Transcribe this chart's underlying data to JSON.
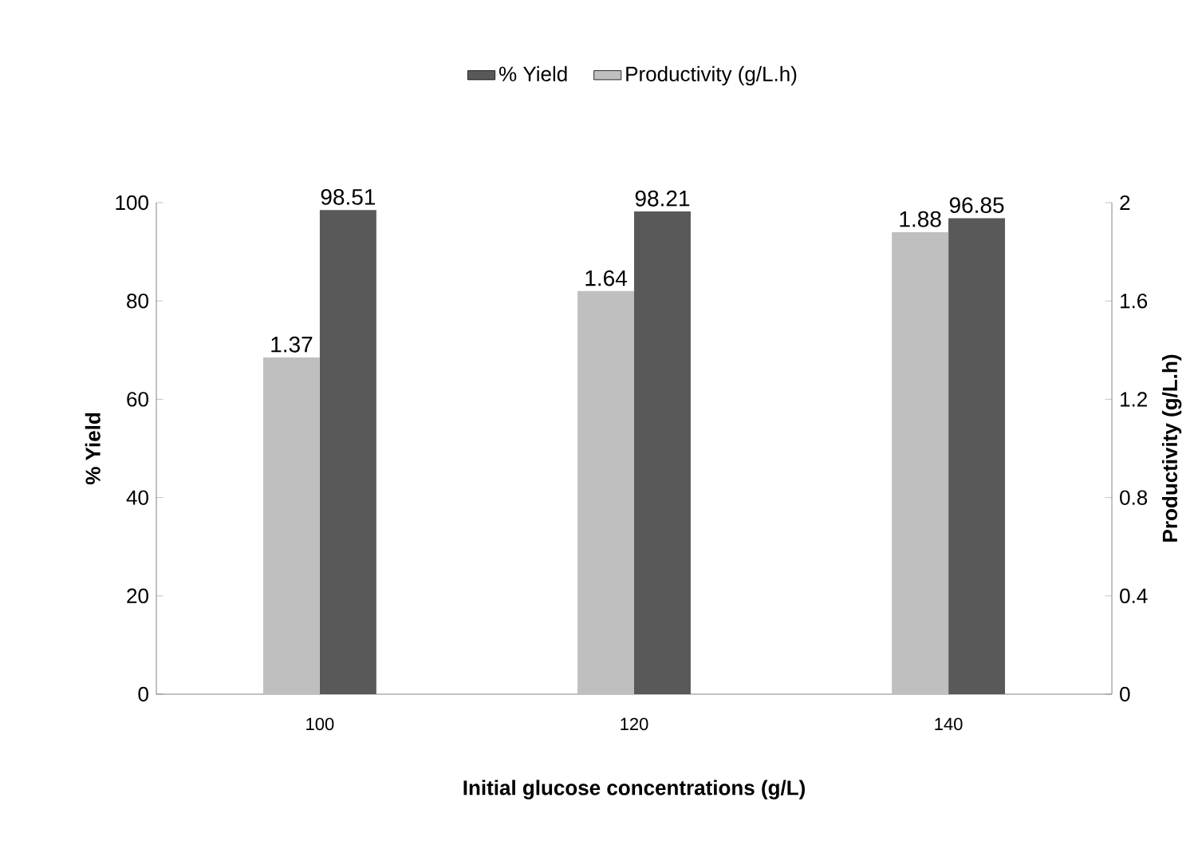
{
  "chart_data": {
    "type": "bar",
    "categories": [
      "100",
      "120",
      "140"
    ],
    "xlabel": "Initial glucose concentrations (g/L)",
    "ylabel": "% Yield",
    "y2label": "Productivity (g/L.h)",
    "series": [
      {
        "name": "% Yield",
        "color": "#595959",
        "values": [
          98.51,
          98.21,
          96.85
        ]
      },
      {
        "name": "Productivity (g/L.h)",
        "color": "#bfbfbf",
        "values": [
          1.37,
          1.64,
          1.88
        ],
        "axis": "y2"
      }
    ],
    "ylim": [
      0,
      100
    ],
    "yticks": [
      0,
      20,
      40,
      60,
      80,
      100
    ],
    "y2lim": [
      0,
      2
    ],
    "y2ticks": [
      0,
      0.4,
      0.8,
      1.2,
      1.6,
      2
    ],
    "data_labels": true,
    "legend": "top",
    "grid": false
  }
}
